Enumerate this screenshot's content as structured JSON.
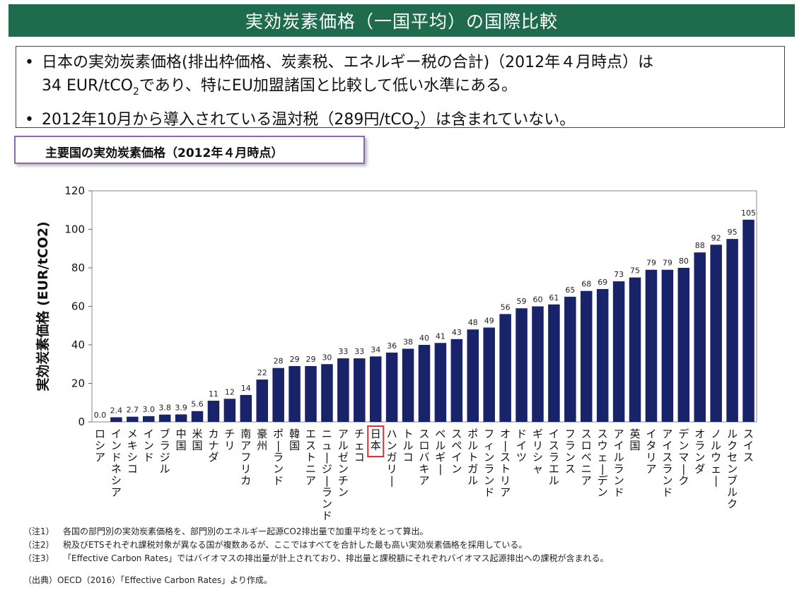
{
  "header": {
    "title": "実効炭素価格（一国平均）の国際比較"
  },
  "bullets": {
    "b1_part1": "日本の実効炭素価格(排出枠価格、炭素税、エネルギー税の合計)（2012年４月時点）は",
    "b1_part2": "34 EUR/tCO",
    "b1_sub": "2",
    "b1_part3": "であり、特にEU加盟諸国と比較して低い水準にある。",
    "b2_part1": "2012年10月から導入されている温対税（289円/tCO",
    "b2_sub": "2",
    "b2_part2": "）は含まれていない。"
  },
  "section_label": "主要国の実効炭素価格（2012年４月時点）",
  "chart_data": {
    "type": "bar",
    "title": "",
    "xlabel": "",
    "ylabel": "実効炭素価格 (EUR/tCO2)",
    "ylim": [
      0,
      120
    ],
    "yticks": [
      0,
      20,
      40,
      60,
      80,
      100,
      120
    ],
    "bar_color": "#18236a",
    "highlight_color": "#e53030",
    "highlight_category": "日本",
    "categories": [
      "ロシア",
      "インドネシア",
      "メキシコ",
      "インド",
      "ブラジル",
      "中国",
      "米国",
      "カナダ",
      "チリ",
      "南アフリカ",
      "豪州",
      "ポーランド",
      "韓国",
      "エストニア",
      "ニュージーランド",
      "アルゼンチン",
      "チェコ",
      "日本",
      "ハンガリー",
      "トルコ",
      "スロバキア",
      "ベルギー",
      "スペイン",
      "ポルトガル",
      "フィンランド",
      "オーストリア",
      "ドイツ",
      "ギリシャ",
      "イスラエル",
      "フランス",
      "スロベニア",
      "スウェーデン",
      "アイルランド",
      "英国",
      "イタリア",
      "アイスランド",
      "デンマーク",
      "オランダ",
      "ノルウェー",
      "ルクセンブルク",
      "スイス"
    ],
    "values": [
      0.0,
      2.4,
      2.7,
      3.0,
      3.8,
      3.9,
      5.6,
      11,
      12,
      14,
      22,
      28,
      29,
      29,
      30,
      33,
      33,
      34,
      36,
      38,
      40,
      41,
      43,
      48,
      49,
      56,
      59,
      60,
      61,
      65,
      68,
      69,
      73,
      75,
      79,
      79,
      80,
      88,
      92,
      95,
      105
    ],
    "value_labels": [
      "0.0",
      "2.4",
      "2.7",
      "3.0",
      "3.8",
      "3.9",
      "5.6",
      "11",
      "12",
      "14",
      "22",
      "28",
      "29",
      "29",
      "30",
      "33",
      "33",
      "34",
      "36",
      "38",
      "40",
      "41",
      "43",
      "48",
      "49",
      "56",
      "59",
      "60",
      "61",
      "65",
      "68",
      "69",
      "73",
      "75",
      "79",
      "79",
      "80",
      "88",
      "92",
      "95",
      "105"
    ]
  },
  "notes": [
    {
      "tag": "（注1）",
      "text": "各国の部門別の実効炭素価格を、部門別のエネルギー起源CO2排出量で加重平均をとって算出。"
    },
    {
      "tag": "（注2）",
      "text": "税及びETSそれぞれ課税対象が異なる国が複数あるが、ここではすべてを合計した最も高い実効炭素価格を採用している。"
    },
    {
      "tag": "（注3）",
      "text": "「Effective Carbon Rates」ではバイオマスの排出量が計上されており、排出量と課税額にそれぞれバイオマス起源排出への課税が含まれる。"
    }
  ],
  "source": "（出典）OECD（2016）「Effective Carbon Rates」より作成。"
}
